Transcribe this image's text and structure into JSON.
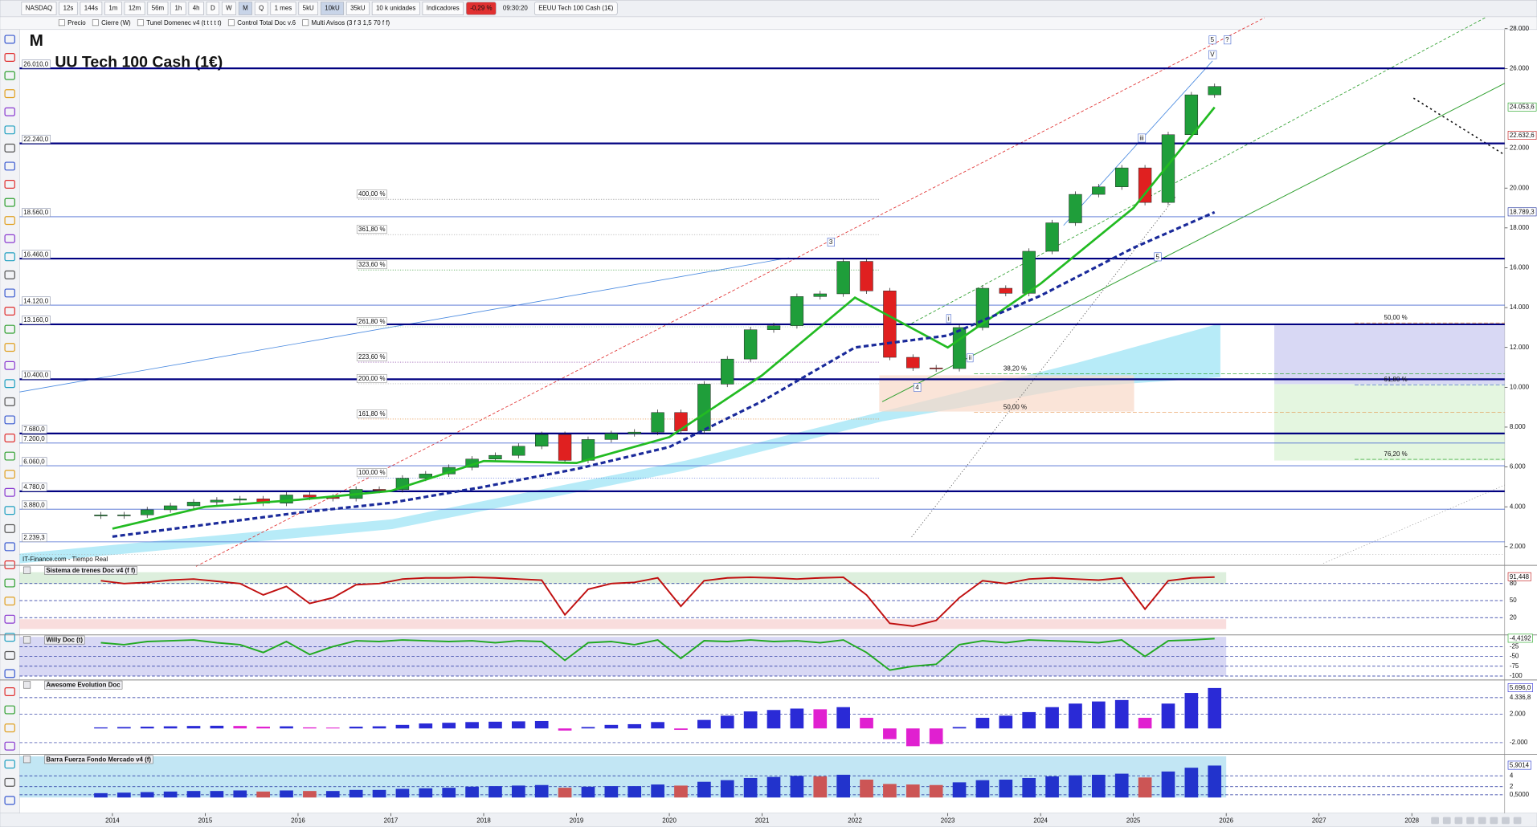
{
  "toolbar": {
    "items": [
      "NASDAQ",
      "12s",
      "144s",
      "1m",
      "12m",
      "56m",
      "1h",
      "4h",
      "D",
      "W",
      "M",
      "Q",
      "1 mes",
      "5kU",
      "10kU",
      "35kU",
      "10 k unidades",
      "Indicadores"
    ],
    "change": "-0,29 %",
    "time": "09:30:20",
    "instrument": "EEUU Tech 100 Cash (1€)"
  },
  "indicators_bar": [
    "Precio",
    "Cierre (W)",
    "Tunel Domenec v4 (t t t t t)",
    "Control Total Doc v.6",
    "Multi Avisos (3 f 3 1,5 70 f f)"
  ],
  "chart_data": {
    "type": "candlestick",
    "period": "M",
    "title": "UU Tech 100 Cash (1€)",
    "source": "IT-Finance.com - Tiempo Real",
    "x": [
      2013.875,
      2014.125,
      2014.375,
      2014.625,
      2014.875,
      2015.125,
      2015.375,
      2015.625,
      2015.875,
      2016.125,
      2016.375,
      2016.625,
      2016.875,
      2017.125,
      2017.375,
      2017.625,
      2017.875,
      2018.125,
      2018.375,
      2018.625,
      2018.875,
      2019.125,
      2019.375,
      2019.625,
      2019.875,
      2020.125,
      2020.375,
      2020.625,
      2020.875,
      2021.125,
      2021.375,
      2021.625,
      2021.875,
      2022.125,
      2022.375,
      2022.625,
      2022.875,
      2023.125,
      2023.375,
      2023.625,
      2023.875,
      2024.125,
      2024.375,
      2024.625,
      2024.875,
      2025.125,
      2025.375,
      2025.625,
      2025.875
    ],
    "values": [
      3592,
      3596,
      3850,
      4050,
      4236,
      4334,
      4397,
      4181,
      4593,
      4483,
      4417,
      4875,
      4864,
      5436,
      5647,
      5979,
      6397,
      6581,
      7040,
      7628,
      6330,
      7378,
      7672,
      7750,
      8733,
      7813,
      10157,
      11418,
      12888,
      13091,
      14554,
      14690,
      16320,
      14838,
      11504,
      10972,
      10940,
      13000,
      14970,
      14716,
      16826,
      18254,
      19683,
      20061,
      21012,
      19278,
      22679,
      24680,
      25100
    ],
    "up_color": "#1f9e3a",
    "down_color": "#e02020",
    "xlim": [
      2013.0,
      2029.0
    ],
    "xticks": [
      2014,
      2015,
      2016,
      2017,
      2018,
      2019,
      2020,
      2021,
      2022,
      2023,
      2024,
      2025,
      2026,
      2027,
      2028
    ],
    "ylim": [
      1160,
      28500
    ],
    "yticks": [
      {
        "value": 28000,
        "label": "28.000"
      },
      {
        "value": 26000,
        "label": "26.000"
      },
      {
        "value": 22000,
        "label": "22.000"
      },
      {
        "value": 20000,
        "label": "20.000"
      },
      {
        "value": 18000,
        "label": "18.000"
      },
      {
        "value": 16000,
        "label": "16.000"
      },
      {
        "value": 14000,
        "label": "14.000"
      },
      {
        "value": 12000,
        "label": "12.000"
      },
      {
        "value": 10000,
        "label": "10.000"
      },
      {
        "value": 8000,
        "label": "8.000"
      },
      {
        "value": 6000,
        "label": "6.000"
      },
      {
        "value": 4000,
        "label": "4.000"
      },
      {
        "value": 2000,
        "label": "2.000"
      }
    ],
    "levels": [
      {
        "value": 26010,
        "label": "26.010,0",
        "thick": true
      },
      {
        "value": 22240,
        "label": "22.240,0",
        "thick": true
      },
      {
        "value": 18560,
        "label": "18.560,0",
        "thick": false
      },
      {
        "value": 16460,
        "label": "16.460,0",
        "thick": true
      },
      {
        "value": 14120,
        "label": "14.120,0",
        "thick": false
      },
      {
        "value": 13160,
        "label": "13.160,0",
        "thick": true
      },
      {
        "value": 10400,
        "label": "10.400,0",
        "thick": true
      },
      {
        "value": 7680,
        "label": "7.680,0",
        "thick": true
      },
      {
        "value": 7200,
        "label": "7.200,0",
        "thick": false
      },
      {
        "value": 6060,
        "label": "6.060,0",
        "thick": false
      },
      {
        "value": 4780,
        "label": "4.780,0",
        "thick": true
      },
      {
        "value": 3880,
        "label": "3.880,0",
        "thick": false
      },
      {
        "value": 2239.3,
        "label": "2.239,3",
        "thick": false
      }
    ],
    "price_labels": [
      {
        "value": 24053.6,
        "label": "24.053,6",
        "color": "#1a9e1a"
      },
      {
        "value": 22632.6,
        "label": "22.632,6",
        "color": "#c01010"
      },
      {
        "value": 18789.3,
        "label": "18.789,3",
        "color": "#1a2a9a"
      }
    ],
    "moving_averages": [
      {
        "color": "#22bb22",
        "dash": false,
        "x": [
          2014,
          2015,
          2016,
          2017,
          2018,
          2019,
          2020,
          2021,
          2022,
          2023,
          2024,
          2025,
          2025.875
        ],
        "values": [
          2900,
          4000,
          4350,
          4800,
          6300,
          6200,
          7500,
          10600,
          14500,
          12000,
          15200,
          19000,
          24053.6
        ]
      },
      {
        "color": "#1a2a9a",
        "dash": true,
        "x": [
          2014,
          2015,
          2016,
          2017,
          2018,
          2019,
          2020,
          2021,
          2022,
          2023,
          2024,
          2025,
          2025.875
        ],
        "values": [
          2500,
          3100,
          3700,
          4200,
          5000,
          5900,
          7000,
          9300,
          12000,
          12600,
          14600,
          17000,
          18789.3
        ]
      }
    ],
    "fib_labels": [
      {
        "label": "400,00 %",
        "value": 19685,
        "x": 2016.65,
        "color": "#777777"
      },
      {
        "label": "361,80 %",
        "value": 17911,
        "x": 2016.65,
        "color": "#999999"
      },
      {
        "label": "323,60 %",
        "value": 16138,
        "x": 2016.65,
        "color": "#1a8a1a"
      },
      {
        "label": "261,80 %",
        "value": 13281,
        "x": 2016.65,
        "color": "#9ad09a"
      },
      {
        "label": "223,60 %",
        "value": 11507,
        "x": 2016.65,
        "color": "#7a2a9a"
      },
      {
        "label": "200,00 %",
        "value": 10424,
        "x": 2016.65,
        "color": "#aaaaaa"
      },
      {
        "label": "161,80 %",
        "value": 8650,
        "x": 2016.65,
        "color": "#e07a20"
      },
      {
        "label": "100,00 %",
        "value": 5695,
        "x": 2016.65,
        "color": "#2a4ad0"
      },
      {
        "label": "38,20 %",
        "value": 10916,
        "x": 2023.6,
        "color": "#1a9e1a"
      },
      {
        "label": "50,00 %",
        "value": 8995,
        "x": 2023.6,
        "color": "#e07a20"
      },
      {
        "label": "50,00 %",
        "value": 13478,
        "x": 2027.7,
        "color": "#e07a20"
      },
      {
        "label": "61,80 %",
        "value": 10374,
        "x": 2027.7,
        "color": "#2a4ad0"
      },
      {
        "label": "76,20 %",
        "value": 6631,
        "x": 2027.7,
        "color": "#1a9e1a"
      }
    ],
    "wave_labels": [
      {
        "label": "5",
        "value": 27419,
        "x": 2025.85
      },
      {
        "label": "?",
        "value": 27419,
        "x": 2026.01
      },
      {
        "label": "V",
        "value": 26680,
        "x": 2025.85
      },
      {
        "label": "iii",
        "value": 22493,
        "x": 2025.09
      },
      {
        "label": "3",
        "value": 17271,
        "x": 2021.74
      },
      {
        "label": "i",
        "value": 13429,
        "x": 2023.01
      },
      {
        "label": "ii",
        "value": 11458,
        "x": 2023.24
      },
      {
        "label": "4",
        "value": 9980,
        "x": 2022.67
      },
      {
        "label": "5",
        "value": 16532,
        "x": 2025.26
      }
    ],
    "panels": [
      {
        "title": "Sistema de trenes Doc v4 (f f)",
        "type": "line",
        "color": "#c01010",
        "ylim": [
          0,
          100
        ],
        "yticks": [
          {
            "value": 91.448,
            "label": "91,448"
          },
          80,
          50,
          20
        ],
        "values": [
          85,
          80,
          82,
          86,
          88,
          84,
          80,
          60,
          75,
          45,
          55,
          78,
          80,
          88,
          90,
          90,
          91,
          90,
          88,
          86,
          25,
          70,
          80,
          82,
          90,
          40,
          85,
          90,
          91,
          90,
          88,
          90,
          91,
          60,
          10,
          5,
          15,
          55,
          85,
          80,
          88,
          90,
          88,
          86,
          90,
          35,
          85,
          90,
          91.448
        ]
      },
      {
        "title": "Willy Doc (t)",
        "type": "line",
        "color": "#22aa22",
        "ylim": [
          -100,
          0
        ],
        "yticks": [
          {
            "value": -4.4192,
            "label": "-4,4192"
          },
          -25,
          -50,
          -75,
          -100
        ],
        "values": [
          -15,
          -20,
          -12,
          -10,
          -8,
          -15,
          -20,
          -40,
          -12,
          -45,
          -25,
          -10,
          -12,
          -8,
          -10,
          -12,
          -10,
          -15,
          -10,
          -12,
          -60,
          -15,
          -12,
          -20,
          -8,
          -55,
          -10,
          -12,
          -8,
          -12,
          -10,
          -15,
          -8,
          -40,
          -85,
          -75,
          -70,
          -20,
          -10,
          -15,
          -8,
          -10,
          -12,
          -15,
          -8,
          -50,
          -10,
          -8,
          -4.4192
        ]
      },
      {
        "title": "Awesome Evolution Doc",
        "type": "bar",
        "color": "#2a2ad6",
        "negative_color": "#e020d0",
        "ylim": [
          -3380,
          6280
        ],
        "yticks": [
          {
            "value": 5696,
            "label": "5.696,0"
          },
          {
            "value": 4336.8,
            "label": "4.336,8"
          },
          {
            "value": 2000,
            "label": "2.000"
          },
          {
            "value": -2000,
            "label": "-2.000"
          }
        ],
        "values": [
          150,
          200,
          250,
          300,
          350,
          380,
          350,
          250,
          300,
          150,
          120,
          250,
          300,
          500,
          700,
          800,
          900,
          950,
          1000,
          1050,
          -300,
          200,
          500,
          600,
          900,
          -200,
          1200,
          1800,
          2400,
          2600,
          2800,
          2700,
          3000,
          1500,
          -1500,
          -2500,
          -2200,
          200,
          1500,
          1800,
          2300,
          3000,
          3500,
          3800,
          4000,
          1500,
          3500,
          5000,
          5696
        ]
      },
      {
        "title": "Barra Fuerza Fondo Mercado v4 (f)",
        "type": "bar",
        "color": "#2233cc",
        "negative_color": "#cc5555",
        "ylim": [
          0,
          7.6
        ],
        "yticks": [
          {
            "value": 5.9014,
            "label": "5,9014"
          },
          4,
          2,
          {
            "value": 0.5,
            "label": "0,5000"
          }
        ],
        "values": [
          0.8,
          0.9,
          1.0,
          1.1,
          1.2,
          1.2,
          1.3,
          1.1,
          1.3,
          1.2,
          1.2,
          1.4,
          1.4,
          1.6,
          1.7,
          1.8,
          2.0,
          2.1,
          2.2,
          2.3,
          1.8,
          2.0,
          2.1,
          2.1,
          2.4,
          2.2,
          2.9,
          3.2,
          3.6,
          3.8,
          4.0,
          3.9,
          4.2,
          3.3,
          2.5,
          2.4,
          2.3,
          2.8,
          3.2,
          3.3,
          3.6,
          3.9,
          4.1,
          4.2,
          4.4,
          3.7,
          4.8,
          5.5,
          5.9014
        ]
      }
    ]
  }
}
